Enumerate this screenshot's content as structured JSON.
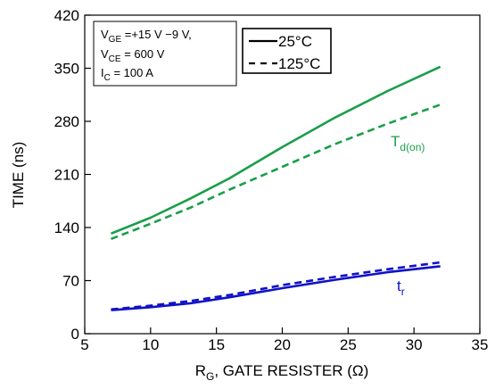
{
  "chart_data": {
    "type": "line",
    "xlabel": {
      "main": "R",
      "sub": "G",
      "rest": ", GATE RESISTER (Ω)"
    },
    "ylabel": "TIME (ns)",
    "xlim": [
      5,
      35
    ],
    "ylim": [
      0,
      420
    ],
    "xticks": [
      5,
      10,
      15,
      20,
      25,
      30,
      35
    ],
    "yticks": [
      0,
      70,
      140,
      210,
      280,
      350,
      420
    ],
    "grid": false,
    "conditions": [
      {
        "main": "V",
        "sub": "GE",
        "rest": " =+15 V −9 V,"
      },
      {
        "main": "V",
        "sub": "CE",
        "rest": " = 600 V"
      },
      {
        "main": "I",
        "sub": "C",
        "rest": " = 100 A"
      }
    ],
    "legend": {
      "position": "top-center",
      "entries": [
        {
          "label": "25°C",
          "style": "solid"
        },
        {
          "label": "125°C",
          "style": "dashed"
        }
      ]
    },
    "curve_labels": [
      {
        "main": "T",
        "sub": "d(on)",
        "color": "#1a9e4a"
      },
      {
        "main": "t",
        "sub": "r",
        "color": "#1010c8"
      }
    ],
    "series": [
      {
        "group": "Td(on)",
        "temp": "25°C",
        "color": "#1a9e4a",
        "style": "solid",
        "x": [
          7,
          10,
          13,
          16,
          20,
          24,
          28,
          32
        ],
        "y": [
          132,
          153,
          178,
          205,
          246,
          285,
          320,
          352
        ]
      },
      {
        "group": "Td(on)",
        "temp": "125°C",
        "color": "#1a9e4a",
        "style": "dashed",
        "x": [
          7,
          10,
          13,
          16,
          20,
          24,
          28,
          32
        ],
        "y": [
          125,
          145,
          166,
          190,
          220,
          250,
          277,
          302
        ]
      },
      {
        "group": "tr",
        "temp": "25°C",
        "color": "#1010c8",
        "style": "solid",
        "x": [
          7,
          10,
          13,
          16,
          20,
          24,
          28,
          32
        ],
        "y": [
          31,
          35,
          40,
          48,
          60,
          71,
          81,
          89
        ]
      },
      {
        "group": "tr",
        "temp": "125°C",
        "color": "#1010c8",
        "style": "dashed",
        "x": [
          7,
          10,
          13,
          16,
          20,
          24,
          28,
          32
        ],
        "y": [
          32,
          37,
          43,
          51,
          64,
          75,
          85,
          94
        ]
      }
    ]
  }
}
